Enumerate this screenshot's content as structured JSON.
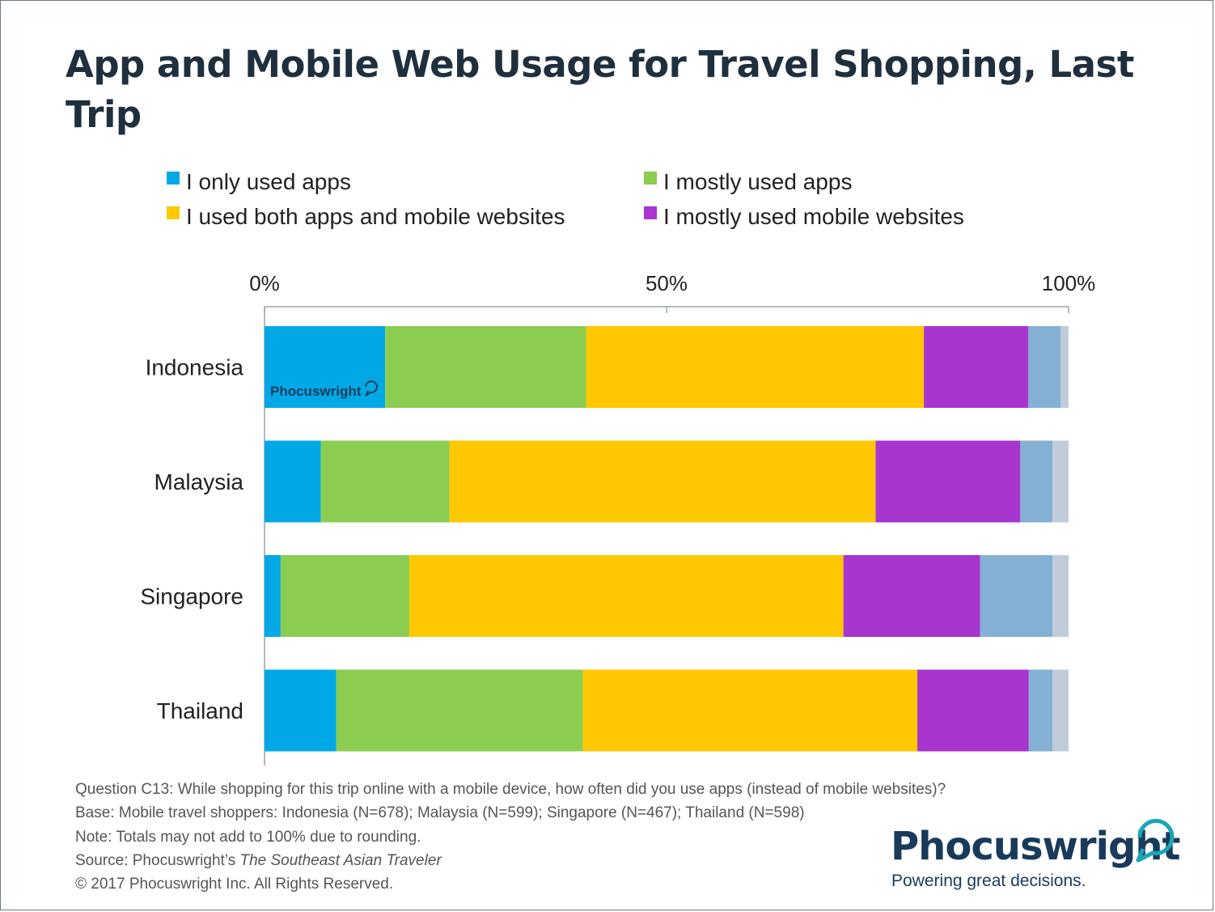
{
  "chart_data": {
    "type": "bar",
    "orientation": "horizontal",
    "stacked": true,
    "title": "App and Mobile Web Usage for Travel Shopping, Last Trip",
    "categories": [
      "Indonesia",
      "Malaysia",
      "Singapore",
      "Thailand"
    ],
    "series": [
      {
        "name": "I only used apps",
        "color": "#00a9e6",
        "values": [
          15,
          7,
          2,
          9
        ]
      },
      {
        "name": "I mostly used apps",
        "color": "#8acd50",
        "values": [
          25,
          16,
          16,
          31
        ]
      },
      {
        "name": "I used both apps and mobile websites",
        "color": "#ffc800",
        "values": [
          42,
          53,
          54,
          42
        ]
      },
      {
        "name": "I mostly used mobile websites",
        "color": "#a935cf",
        "values": [
          13,
          18,
          17,
          14
        ]
      },
      {
        "color": "#84b0d3",
        "values": [
          4,
          4,
          9,
          3
        ]
      },
      {
        "color": "#c0ccd9",
        "values": [
          1,
          2,
          2,
          2
        ]
      }
    ],
    "xlim": [
      0,
      100
    ],
    "ticks": [
      "0%",
      "50%",
      "100%"
    ],
    "legend_position": "top"
  },
  "notes": [
    "Question C13: While shopping for this trip online with a mobile device, how often did you use apps (instead of mobile websites)?",
    "Base: Mobile travel shoppers: Indonesia (N=678); Malaysia (N=599); Singapore (N=467); Thailand (N=598)",
    "Note: Totals may not add to 100% due to rounding."
  ],
  "source": {
    "prefix": "Source: Phocuswright’s ",
    "title": "The Southeast Asian Traveler"
  },
  "copyright": "© 2017 Phocuswright Inc. All Rights Reserved.",
  "logo": {
    "name": "Phocuswright",
    "tagline": "Powering great decisions.",
    "color": "#1a3a5c",
    "accent": "#1aa6b7"
  }
}
